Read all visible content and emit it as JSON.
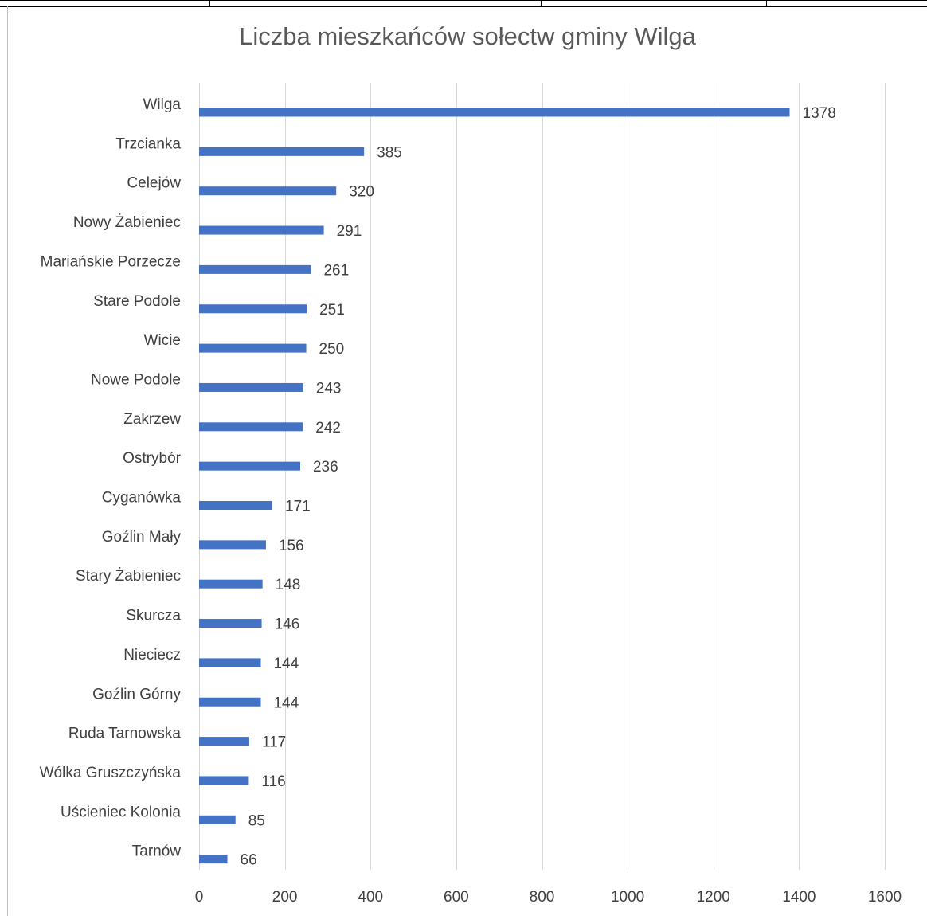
{
  "colors": {
    "bar": "#4472c4",
    "grid": "#d9d9d9",
    "text": "#404040",
    "title": "#595959"
  },
  "chart_data": {
    "type": "bar",
    "orientation": "horizontal",
    "title": "Liczba mieszkańców sołectw gminy Wilga",
    "xlabel": "",
    "ylabel": "",
    "xlim": [
      0,
      1600
    ],
    "x_ticks": [
      0,
      200,
      400,
      600,
      800,
      1000,
      1200,
      1400,
      1600
    ],
    "grid": true,
    "legend": "none",
    "categories": [
      "Wilga",
      "Trzcianka",
      "Celejów",
      "Nowy Żabieniec",
      "Mariańskie Porzecze",
      "Stare Podole",
      "Wicie",
      "Nowe Podole",
      "Zakrzew",
      "Ostrybór",
      "Cyganówka",
      "Goźlin Mały",
      "Stary Żabieniec",
      "Skurcza",
      "Nieciecz",
      "Goźlin Górny",
      "Ruda Tarnowska",
      "Wólka Gruszczyńska",
      "Uścieniec Kolonia",
      "Tarnów"
    ],
    "values": [
      1378,
      385,
      320,
      291,
      261,
      251,
      250,
      243,
      242,
      236,
      171,
      156,
      148,
      146,
      144,
      144,
      117,
      116,
      85,
      66
    ]
  }
}
